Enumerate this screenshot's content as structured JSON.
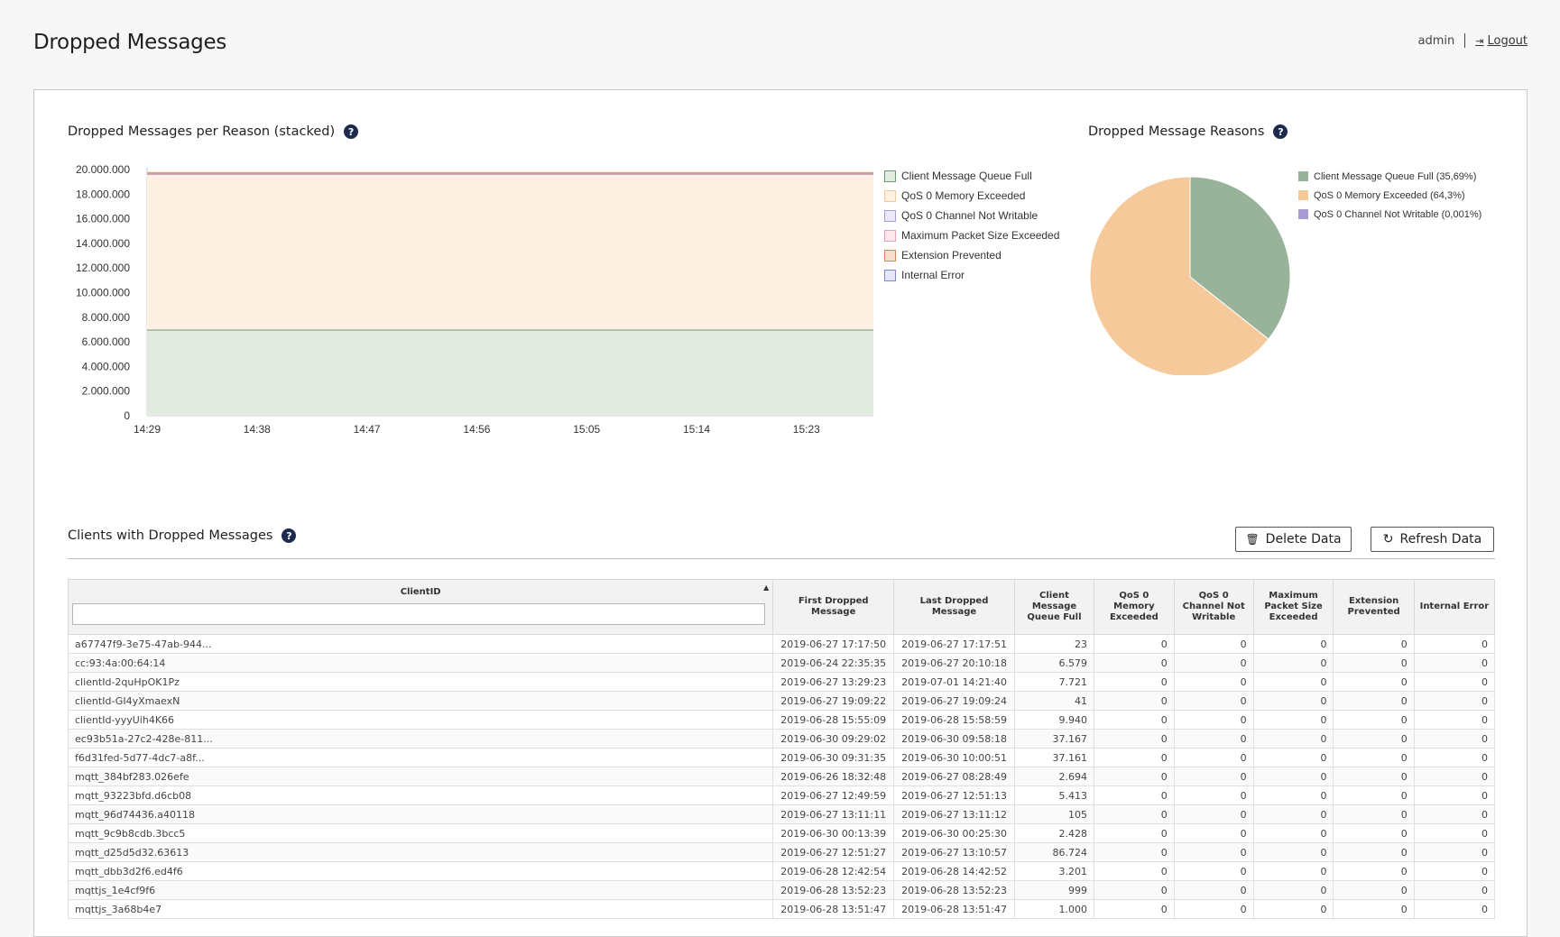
{
  "header": {
    "title": "Dropped Messages",
    "user": "admin",
    "logout_label": "Logout"
  },
  "area_chart_section": {
    "title": "Dropped Messages per Reason (stacked)"
  },
  "pie_section": {
    "title": "Dropped Message Reasons"
  },
  "clients_section": {
    "title": "Clients with Dropped Messages",
    "delete_label": "Delete Data",
    "refresh_label": "Refresh Data"
  },
  "chart_data": [
    {
      "type": "area",
      "title": "Dropped Messages per Reason (stacked)",
      "stacked": true,
      "x": [
        "14:29",
        "14:38",
        "14:47",
        "14:56",
        "15:05",
        "15:14",
        "15:23"
      ],
      "y_ticks": [
        "20.000.000",
        "18.000.000",
        "16.000.000",
        "14.000.000",
        "12.000.000",
        "10.000.000",
        "8.000.000",
        "6.000.000",
        "4.000.000",
        "2.000.000",
        "0"
      ],
      "ylim": [
        0,
        20000000
      ],
      "legend_position": "right",
      "series": [
        {
          "name": "Client Message Queue Full",
          "color": "#6b9a6f",
          "fill": "#e3ebe3",
          "values": [
            7000000,
            7000000,
            7000000,
            7000000,
            7000000,
            7000000,
            7000000
          ]
        },
        {
          "name": "QoS 0 Memory Exceeded",
          "color": "#f1c9a0",
          "fill": "#fdf1e4",
          "values": [
            12650000,
            12650000,
            12650000,
            12650000,
            12650000,
            12650000,
            12650000
          ]
        },
        {
          "name": "QoS 0 Channel Not Writable",
          "color": "#a79bd3",
          "fill": "#ece8f7",
          "values": [
            200,
            200,
            200,
            200,
            200,
            200,
            200
          ]
        },
        {
          "name": "Maximum Packet Size Exceeded",
          "color": "#e3a3b3",
          "fill": "#fbe8ec",
          "values": [
            0,
            0,
            0,
            0,
            0,
            0,
            0
          ]
        },
        {
          "name": "Extension Prevented",
          "color": "#d9865a",
          "fill": "#f7ddd0",
          "values": [
            0,
            0,
            0,
            0,
            0,
            0,
            0
          ]
        },
        {
          "name": "Internal Error",
          "color": "#7f86c9",
          "fill": "#e5e7f7",
          "values": [
            0,
            0,
            0,
            0,
            0,
            0,
            0
          ]
        }
      ]
    },
    {
      "type": "pie",
      "title": "Dropped Message Reasons",
      "legend_position": "right",
      "slices": [
        {
          "label": "Client Message Queue Full (35,69%)",
          "value": 35.69,
          "color": "#98b39a"
        },
        {
          "label": "QoS 0 Memory Exceeded (64,3%)",
          "value": 64.3,
          "color": "#f6c99b"
        },
        {
          "label": "QoS 0 Channel Not Writable (0,001%)",
          "value": 0.001,
          "color": "#a79bd3"
        }
      ]
    }
  ],
  "table": {
    "columns": [
      "ClientID",
      "First Dropped Message",
      "Last Dropped Message",
      "Client Message Queue Full",
      "QoS 0 Memory Exceeded",
      "QoS 0 Channel Not Writable",
      "Maximum Packet Size Exceeded",
      "Extension Prevented",
      "Internal Error"
    ],
    "rows": [
      [
        "a67747f9-3e75-47ab-944...",
        "2019-06-27 17:17:50",
        "2019-06-27 17:17:51",
        "23",
        "0",
        "0",
        "0",
        "0",
        "0"
      ],
      [
        "cc:93:4a:00:64:14",
        "2019-06-24 22:35:35",
        "2019-06-27 20:10:18",
        "6.579",
        "0",
        "0",
        "0",
        "0",
        "0"
      ],
      [
        "clientId-2quHpOK1Pz",
        "2019-06-27 13:29:23",
        "2019-07-01 14:21:40",
        "7.721",
        "0",
        "0",
        "0",
        "0",
        "0"
      ],
      [
        "clientId-GI4yXmaexN",
        "2019-06-27 19:09:22",
        "2019-06-27 19:09:24",
        "41",
        "0",
        "0",
        "0",
        "0",
        "0"
      ],
      [
        "clientId-yyyUih4K66",
        "2019-06-28 15:55:09",
        "2019-06-28 15:58:59",
        "9.940",
        "0",
        "0",
        "0",
        "0",
        "0"
      ],
      [
        "ec93b51a-27c2-428e-811...",
        "2019-06-30 09:29:02",
        "2019-06-30 09:58:18",
        "37.167",
        "0",
        "0",
        "0",
        "0",
        "0"
      ],
      [
        "f6d31fed-5d77-4dc7-a8f...",
        "2019-06-30 09:31:35",
        "2019-06-30 10:00:51",
        "37.161",
        "0",
        "0",
        "0",
        "0",
        "0"
      ],
      [
        "mqtt_384bf283.026efe",
        "2019-06-26 18:32:48",
        "2019-06-27 08:28:49",
        "2.694",
        "0",
        "0",
        "0",
        "0",
        "0"
      ],
      [
        "mqtt_93223bfd.d6cb08",
        "2019-06-27 12:49:59",
        "2019-06-27 12:51:13",
        "5.413",
        "0",
        "0",
        "0",
        "0",
        "0"
      ],
      [
        "mqtt_96d74436.a40118",
        "2019-06-27 13:11:11",
        "2019-06-27 13:11:12",
        "105",
        "0",
        "0",
        "0",
        "0",
        "0"
      ],
      [
        "mqtt_9c9b8cdb.3bcc5",
        "2019-06-30 00:13:39",
        "2019-06-30 00:25:30",
        "2.428",
        "0",
        "0",
        "0",
        "0",
        "0"
      ],
      [
        "mqtt_d25d5d32.63613",
        "2019-06-27 12:51:27",
        "2019-06-27 13:10:57",
        "86.724",
        "0",
        "0",
        "0",
        "0",
        "0"
      ],
      [
        "mqtt_dbb3d2f6.ed4f6",
        "2019-06-28 12:42:54",
        "2019-06-28 14:42:52",
        "3.201",
        "0",
        "0",
        "0",
        "0",
        "0"
      ],
      [
        "mqttjs_1e4cf9f6",
        "2019-06-28 13:52:23",
        "2019-06-28 13:52:23",
        "999",
        "0",
        "0",
        "0",
        "0",
        "0"
      ],
      [
        "mqttjs_3a68b4e7",
        "2019-06-28 13:51:47",
        "2019-06-28 13:51:47",
        "1.000",
        "0",
        "0",
        "0",
        "0",
        "0"
      ]
    ]
  }
}
